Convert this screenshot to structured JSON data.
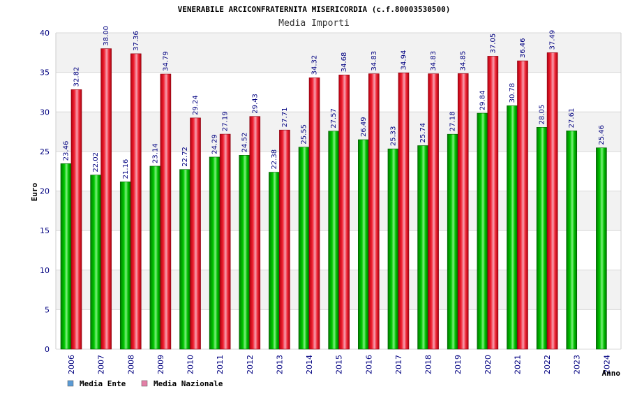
{
  "chart_data": {
    "type": "bar",
    "title": "VENERABILE ARCICONFRATERNITA MISERICORDIA (c.f.80003530500)",
    "subtitle": "Media Importi",
    "xlabel": "Anno",
    "ylabel": "Euro",
    "ylim": [
      0,
      40
    ],
    "yticks": [
      0,
      5,
      10,
      15,
      20,
      25,
      30,
      35,
      40
    ],
    "grid": true,
    "legend_position": "bottom-left",
    "categories": [
      "2006",
      "2007",
      "2008",
      "2009",
      "2010",
      "2011",
      "2012",
      "2013",
      "2014",
      "2015",
      "2016",
      "2017",
      "2018",
      "2019",
      "2020",
      "2021",
      "2022",
      "2023",
      "2024"
    ],
    "series": [
      {
        "name": "Media Ente",
        "legend_color": "#5b9bd5",
        "color": "#00b400",
        "values": [
          23.46,
          22.02,
          21.16,
          23.14,
          22.72,
          24.29,
          24.52,
          22.38,
          25.55,
          27.57,
          26.49,
          25.33,
          25.74,
          27.18,
          29.84,
          30.78,
          28.05,
          27.61,
          25.46
        ],
        "labels": [
          "23.46",
          "22.02",
          "21.16",
          "23.14",
          "22.72",
          "24.29",
          "24.52",
          "22.38",
          "25.55",
          "27.57",
          "26.49",
          "25.33",
          "25.74",
          "27.18",
          "29.84",
          "30.78",
          "28.05",
          "27.61",
          "25.46"
        ]
      },
      {
        "name": "Media Nazionale",
        "legend_color": "#e37fa6",
        "color": "#e8202a",
        "values": [
          32.82,
          38.0,
          37.36,
          34.79,
          29.24,
          27.19,
          29.43,
          27.71,
          34.32,
          34.68,
          34.83,
          34.94,
          34.83,
          34.85,
          37.05,
          36.46,
          37.49,
          null,
          null
        ],
        "labels": [
          "32.82",
          "38.00",
          "37.36",
          "34.79",
          "29.24",
          "27.19",
          "29.43",
          "27.71",
          "34.32",
          "34.68",
          "34.83",
          "34.94",
          "34.83",
          "34.85",
          "37.05",
          "36.46",
          "37.49",
          null,
          null
        ]
      }
    ]
  }
}
